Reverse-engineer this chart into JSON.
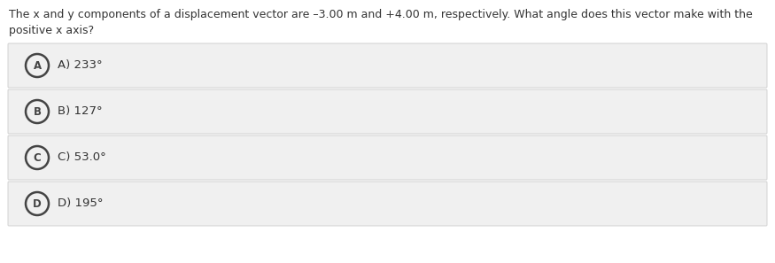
{
  "question_line1": "The x and y components of a displacement vector are –3.00 m and +4.00 m, respectively. What angle does this vector make with the",
  "question_line2": "positive x axis?",
  "options": [
    {
      "letter": "A",
      "text": "A) 233°"
    },
    {
      "letter": "B",
      "text": "B) 127°"
    },
    {
      "letter": "C",
      "text": "C) 53.0°"
    },
    {
      "letter": "D",
      "text": "D) 195°"
    }
  ],
  "bg_color": "#ffffff",
  "option_bg_color": "#f0f0f0",
  "option_border_color": "#cccccc",
  "text_color": "#333333",
  "circle_edge_color": "#444444",
  "question_fontsize": 9.0,
  "option_fontsize": 9.5,
  "letter_fontsize": 8.5
}
